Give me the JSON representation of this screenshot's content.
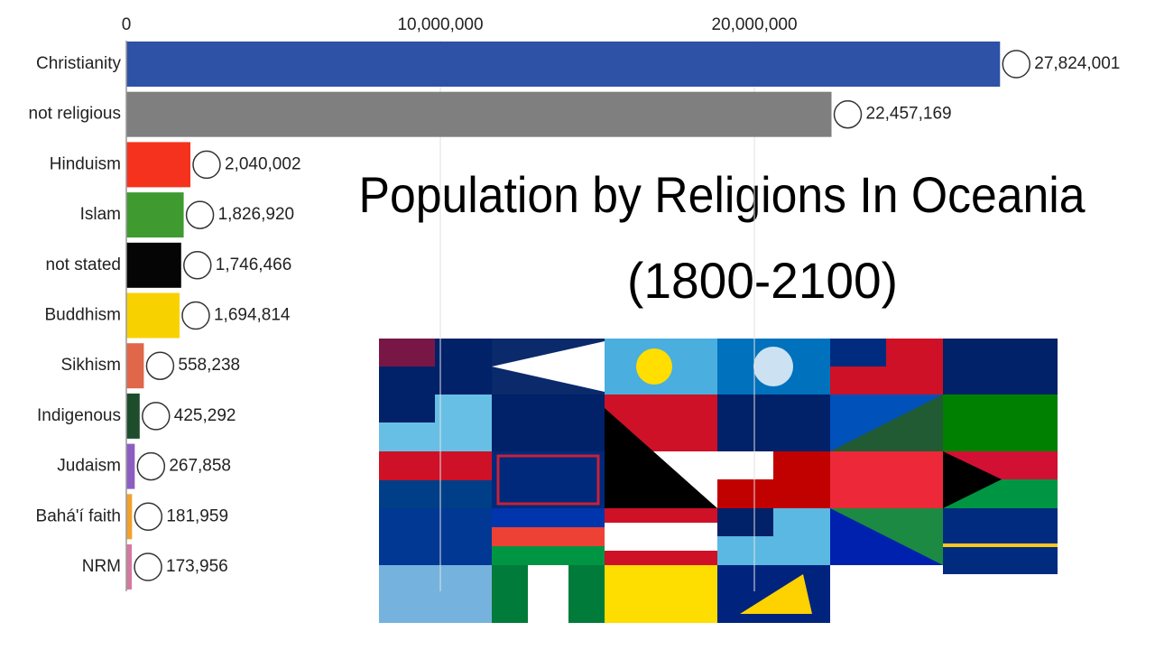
{
  "chart_data": {
    "type": "bar",
    "orientation": "horizontal",
    "title": "Population by Religions In Oceania",
    "subtitle": "(1800-2100)",
    "categories": [
      "Christianity",
      "not religious",
      "Hinduism",
      "Islam",
      "not stated",
      "Buddhism",
      "Sikhism",
      "Indigenous",
      "Judaism",
      "Bahá'í faith",
      "NRM"
    ],
    "values": [
      27824001,
      22457169,
      2040002,
      1826920,
      1746466,
      1694814,
      558238,
      425292,
      267858,
      181959,
      173956
    ],
    "value_labels": [
      "27,824,001",
      "22,457,169",
      "2,040,002",
      "1,826,920",
      "1,746,466",
      "1,694,814",
      "558,238",
      "425,292",
      "267,858",
      "181,959",
      "173,956"
    ],
    "colors": [
      "#2d52a6",
      "#7f7f7f",
      "#f4321d",
      "#3f9b30",
      "#050505",
      "#f7d200",
      "#e0674a",
      "#1d4d2c",
      "#8c5ec2",
      "#f1a12e",
      "#d47aa0"
    ],
    "xlim": [
      0,
      32000000
    ],
    "xticks": [
      0,
      {
        "value": 10000000,
        "label": "10,000,000"
      },
      {
        "value": 20000000,
        "label": "20,000,000"
      }
    ],
    "grid": true
  }
}
